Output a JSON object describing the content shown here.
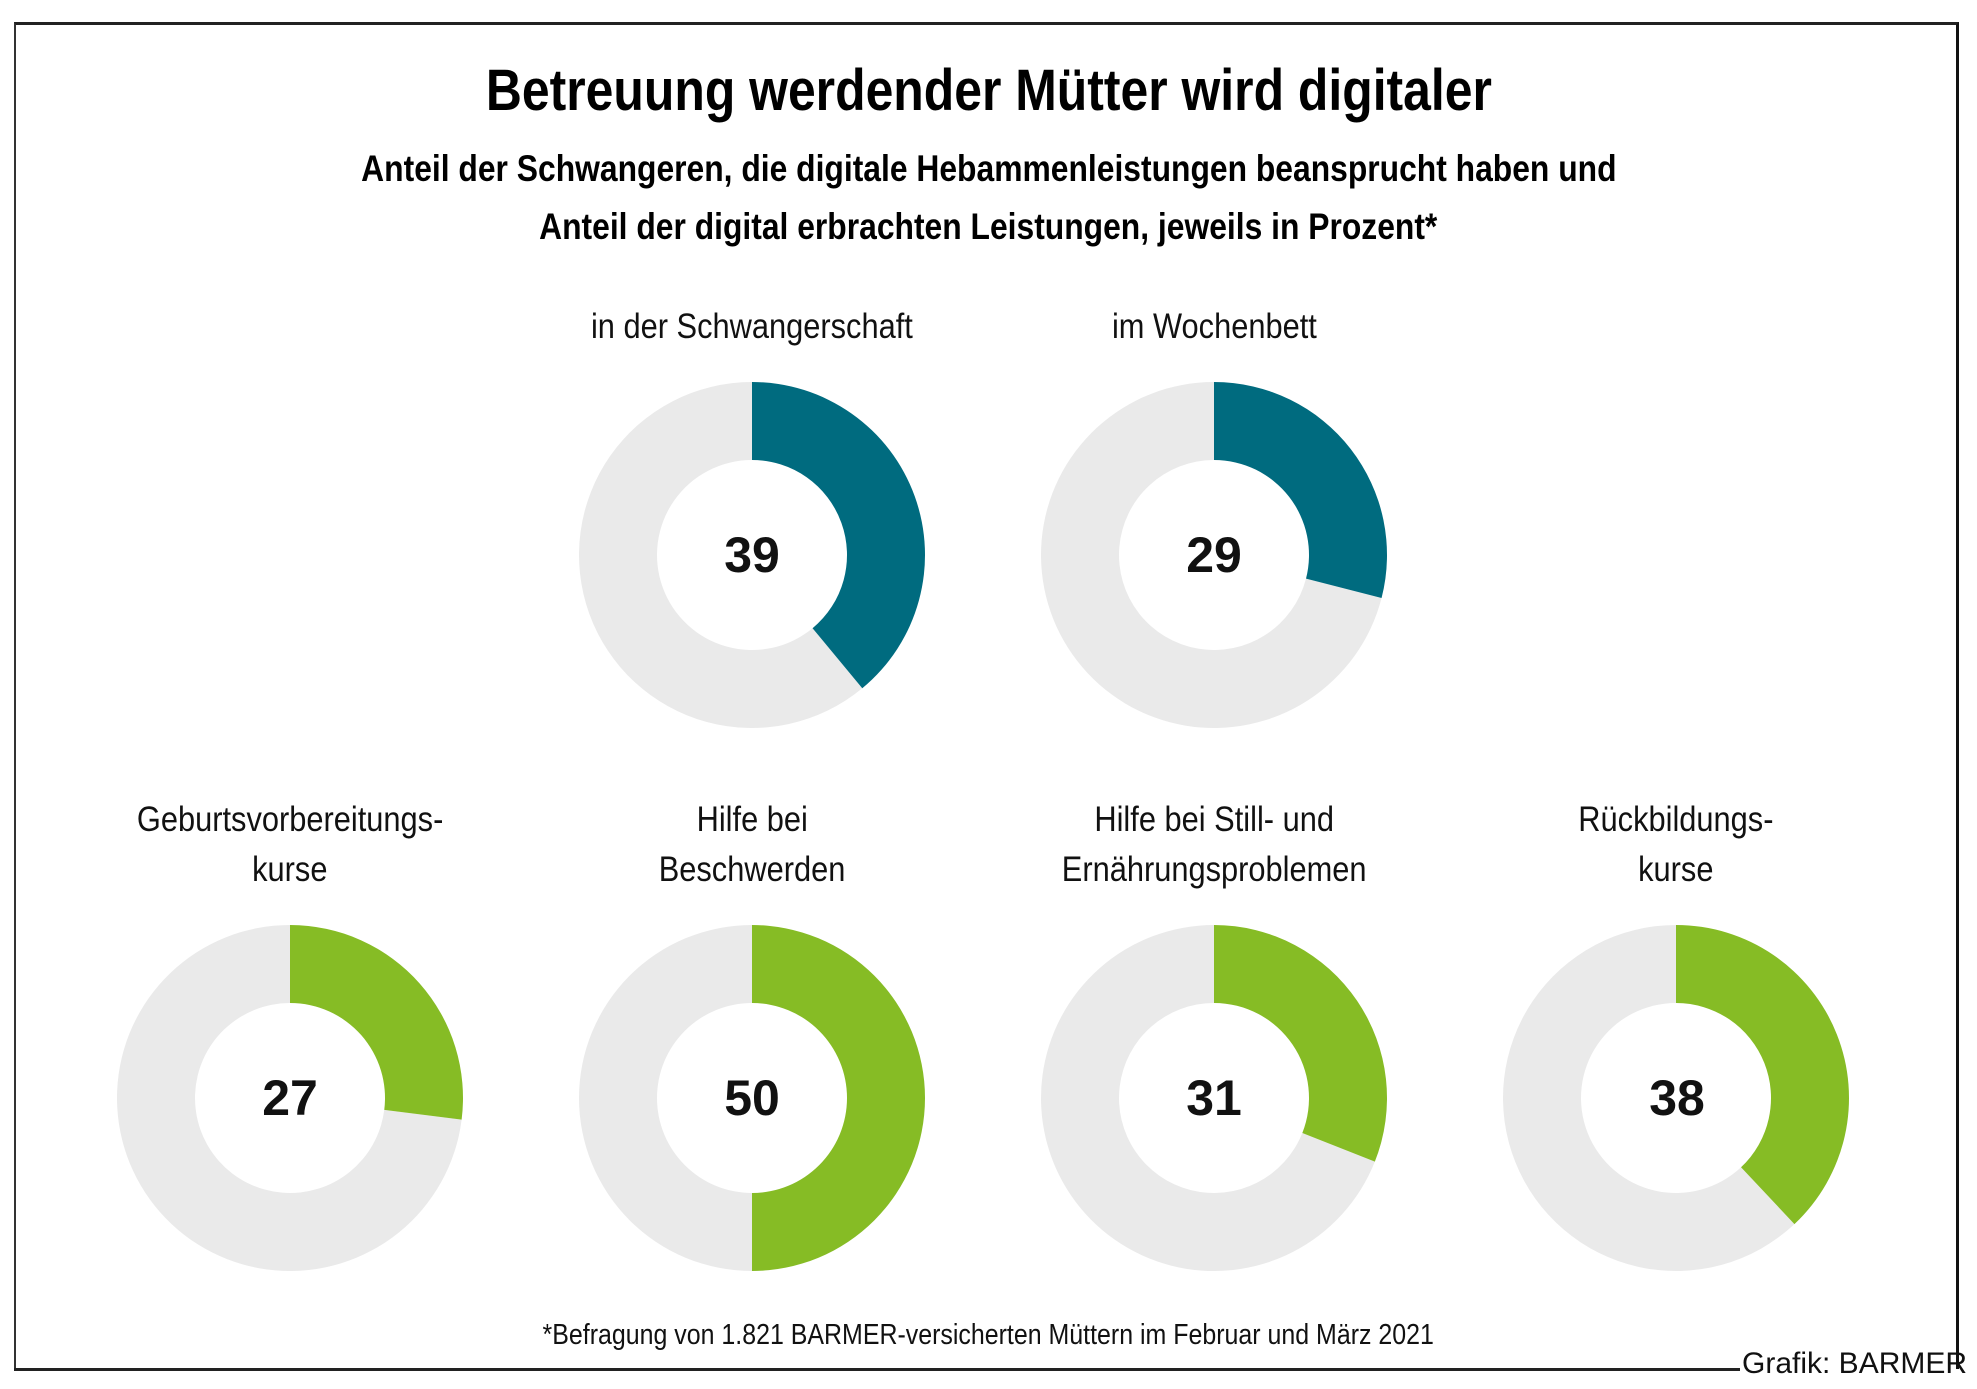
{
  "header": {
    "title": "Betreuung werdender Mütter wird digitaler",
    "subtitle_line1": "Anteil der Schwangeren, die digitale Hebammenleistungen beansprucht haben und",
    "subtitle_line2": "Anteil der digital erbrachten Leistungen, jeweils in Prozent*"
  },
  "footer": {
    "footnote": "*Befragung von 1.821 BARMER-versicherten Müttern im Februar und März 2021",
    "credit": "Grafik: BARMER"
  },
  "colors": {
    "teal": "#006B7F",
    "green": "#86BC25",
    "remainder": "#EAEAEA"
  },
  "chart_data": {
    "type": "pie",
    "variant": "donut",
    "title": "Betreuung werdender Mütter wird digitaler",
    "subtitle": "Anteil der Schwangeren, die digitale Hebammenleistungen beansprucht haben und Anteil der digital erbrachten Leistungen, jeweils in Prozent*",
    "unit": "percent",
    "max": 100,
    "groups": [
      {
        "name": "Anteil der Schwangeren mit digitalen Hebammenleistungen",
        "color": "#006B7F",
        "items": [
          {
            "label_lines": [
              "in der Schwangerschaft"
            ],
            "value": 39
          },
          {
            "label_lines": [
              "im Wochenbett"
            ],
            "value": 29
          }
        ]
      },
      {
        "name": "Anteil der digital erbrachten Leistungen",
        "color": "#86BC25",
        "items": [
          {
            "label_lines": [
              "Geburtsvorbereitungs-",
              "kurse"
            ],
            "value": 27
          },
          {
            "label_lines": [
              "Hilfe bei",
              "Beschwerden"
            ],
            "value": 50
          },
          {
            "label_lines": [
              "Hilfe bei Still- und",
              "Ernährungsproblemen"
            ],
            "value": 31
          },
          {
            "label_lines": [
              "Rückbildungs-",
              "kurse"
            ],
            "value": 38
          }
        ]
      }
    ]
  }
}
